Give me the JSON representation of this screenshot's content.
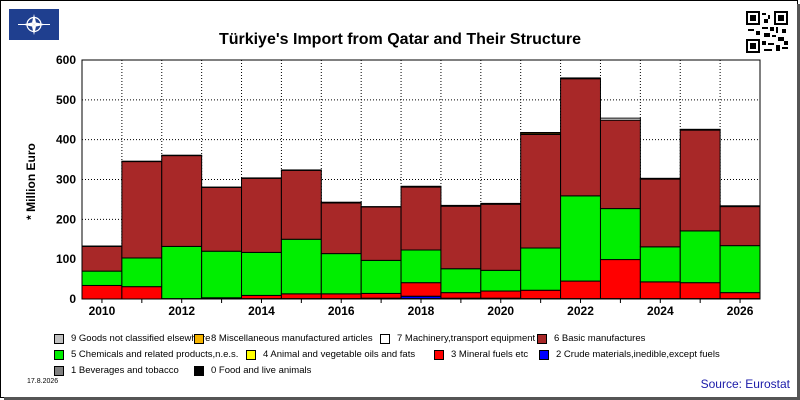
{
  "header": {
    "title": "Türkiye's Import from Qatar and Their Structure",
    "logo_icon": "nato-compass-icon",
    "qr_icon": "qr-code-icon"
  },
  "footer": {
    "date": "17.8.2026",
    "source": "Source: Eurostat"
  },
  "colors": {
    "background": "#ffffff",
    "plot_area": "#ffffff",
    "axis_text": "#000000",
    "source_text": "#1a1aa8"
  },
  "legend": [
    {
      "label": "9 Goods not classified elsewhere",
      "color": "#c0c0c0"
    },
    {
      "label": "8 Miscellaneous manufactured articles",
      "color": "#f6b400"
    },
    {
      "label": "7 Machinery,transport equipment",
      "color": "#ffffff"
    },
    {
      "label": "6 Basic manufactures",
      "color": "#a82828"
    },
    {
      "label": "5 Chemicals and related products,n.e.s.",
      "color": "#00ee00"
    },
    {
      "label": "4 Animal and vegetable oils and fats",
      "color": "#ffff00"
    },
    {
      "label": "3 Mineral fuels etc",
      "color": "#ff0000"
    },
    {
      "label": "2 Crude materials,inedible,except fuels",
      "color": "#0000ff"
    },
    {
      "label": "1 Beverages and tobacco",
      "color": "#808080"
    },
    {
      "label": "0 Food and live animals",
      "color": "#000000"
    }
  ],
  "chart_data": {
    "type": "bar",
    "stacked": true,
    "title": "Türkiye's Import from Qatar and Their Structure",
    "xlabel": "",
    "ylabel": "* Million Euro",
    "ylim": [
      0,
      600
    ],
    "yticks": [
      "0",
      "100",
      "200",
      "300",
      "400",
      "500",
      "600"
    ],
    "grid": true,
    "legend_position": "bottom",
    "categories": [
      "2010",
      "2011",
      "2012",
      "2013",
      "2014",
      "2015",
      "2016",
      "2017",
      "2018",
      "2019",
      "2020",
      "2021",
      "2022",
      "2023",
      "2024",
      "2025",
      "2026"
    ],
    "x_tick_labels": [
      "2010",
      "",
      "2012",
      "",
      "2014",
      "",
      "2016",
      "",
      "2018",
      "",
      "2020",
      "",
      "2022",
      "",
      "2024",
      "",
      "2026"
    ],
    "series": [
      {
        "name": "0 Food and live animals",
        "color": "#000000",
        "values": [
          0,
          0,
          1,
          1,
          1,
          1,
          1,
          1,
          1,
          1,
          1,
          1,
          1,
          1,
          1,
          1,
          1
        ]
      },
      {
        "name": "1 Beverages and tobacco",
        "color": "#808080",
        "values": [
          0,
          0,
          0,
          0,
          0,
          0,
          0,
          0,
          0,
          0,
          0,
          0,
          0,
          0,
          0,
          0,
          0
        ]
      },
      {
        "name": "2 Crude materials,inedible,except fuels",
        "color": "#0000ff",
        "values": [
          0,
          0,
          0,
          0,
          0,
          0,
          0,
          1,
          6,
          1,
          1,
          0,
          0,
          0,
          0,
          0,
          0
        ]
      },
      {
        "name": "3 Mineral fuels etc",
        "color": "#ff0000",
        "values": [
          34,
          31,
          0,
          2,
          8,
          12,
          12,
          12,
          34,
          14,
          18,
          21,
          44,
          98,
          42,
          40,
          15
        ]
      },
      {
        "name": "4 Animal and vegetable oils and fats",
        "color": "#ffff00",
        "values": [
          0,
          0,
          0,
          0,
          0,
          0,
          0,
          0,
          0,
          0,
          0,
          0,
          0,
          0,
          0,
          0,
          0
        ]
      },
      {
        "name": "5 Chemicals and related products,n.e.s.",
        "color": "#00ee00",
        "values": [
          36,
          72,
          131,
          117,
          108,
          137,
          101,
          83,
          82,
          60,
          52,
          106,
          214,
          128,
          88,
          130,
          118
        ]
      },
      {
        "name": "6 Basic manufactures",
        "color": "#a82828",
        "values": [
          62,
          242,
          228,
          160,
          186,
          173,
          127,
          134,
          158,
          157,
          166,
          285,
          294,
          222,
          170,
          253,
          98
        ]
      },
      {
        "name": "7 Machinery,transport equipment",
        "color": "#ffffff",
        "values": [
          1,
          1,
          1,
          1,
          1,
          1,
          2,
          1,
          2,
          2,
          2,
          2,
          2,
          5,
          2,
          2,
          2
        ]
      },
      {
        "name": "8 Miscellaneous manufactured articles",
        "color": "#f6b400",
        "values": [
          0,
          0,
          0,
          0,
          0,
          0,
          0,
          0,
          0,
          0,
          0,
          3,
          0,
          0,
          0,
          0,
          0
        ]
      },
      {
        "name": "9 Goods not classified elsewhere",
        "color": "#c0c0c0",
        "values": [
          0,
          0,
          0,
          0,
          0,
          0,
          0,
          0,
          0,
          0,
          0,
          0,
          0,
          0,
          0,
          0,
          0
        ]
      }
    ]
  }
}
